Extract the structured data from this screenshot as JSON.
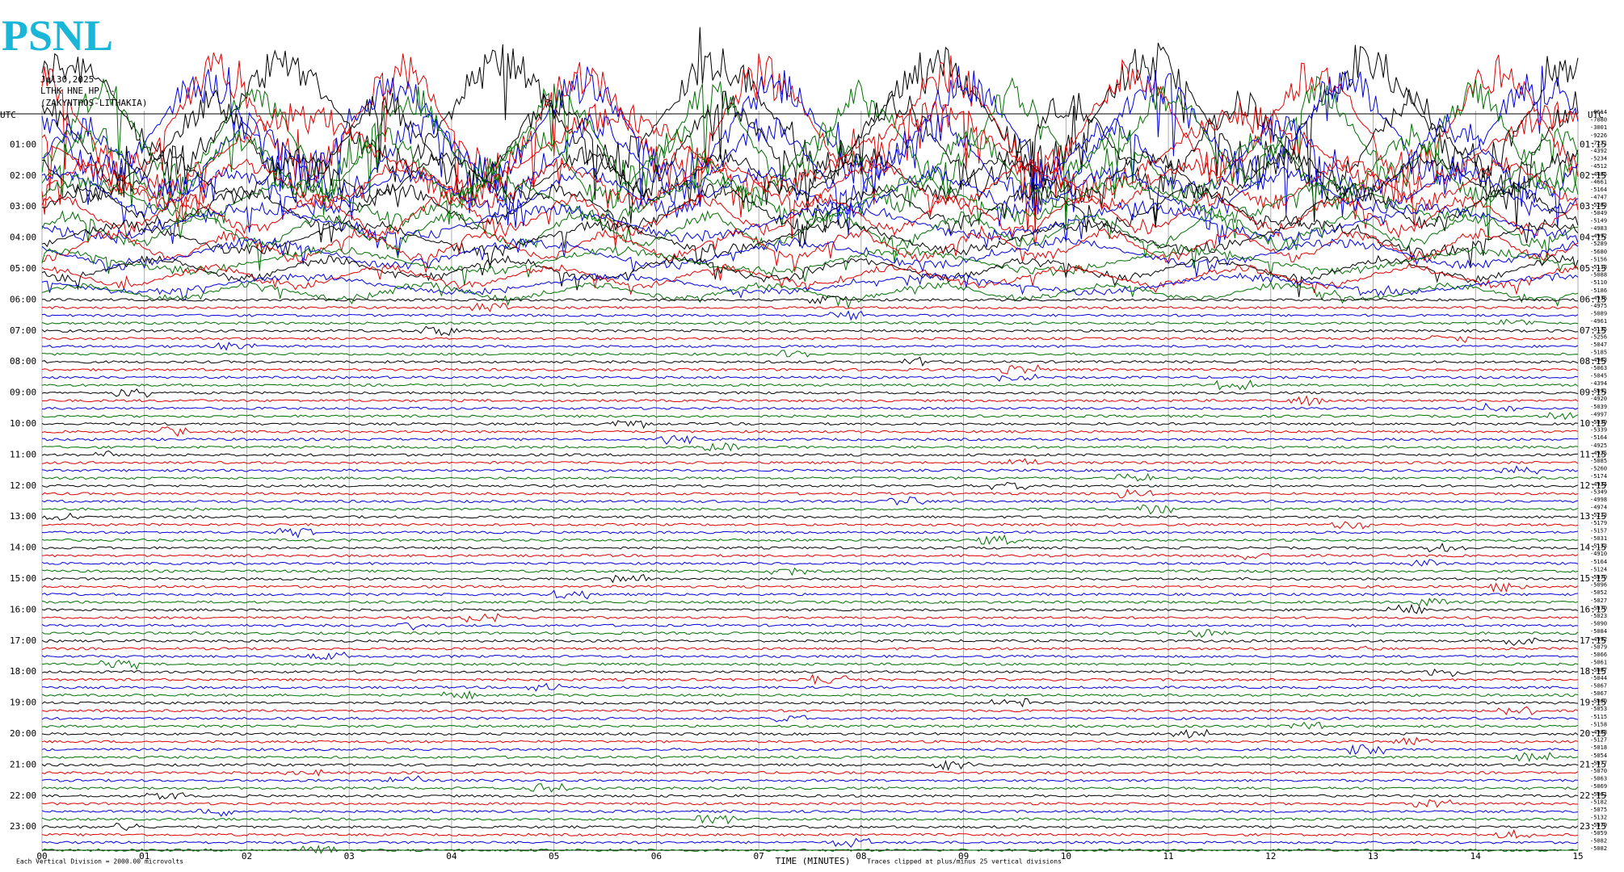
{
  "header": {
    "logo": "PSNL",
    "date": "Jul30,2025",
    "station": "LTHK HNE HP --",
    "location": "(ZAKYNTHOS-LITHAKIA)"
  },
  "left_axis": {
    "title": "UTC",
    "labels": [
      "01:00",
      "02:00",
      "03:00",
      "04:00",
      "05:00",
      "06:00",
      "07:00",
      "08:00",
      "09:00",
      "10:00",
      "11:00",
      "12:00",
      "13:00",
      "14:00",
      "15:00",
      "16:00",
      "17:00",
      "18:00",
      "19:00",
      "20:00",
      "21:00",
      "22:00",
      "23:00"
    ]
  },
  "right_axis": {
    "title": "UTC",
    "labels": [
      "01:15",
      "02:15",
      "03:15",
      "04:15",
      "05:15",
      "06:15",
      "07:15",
      "08:15",
      "09:15",
      "10:15",
      "11:15",
      "12:15",
      "13:15",
      "14:15",
      "15:15",
      "16:15",
      "17:15",
      "18:15",
      "19:15",
      "20:15",
      "21:15",
      "22:15",
      "23:15"
    ],
    "offsets": [
      "-8614",
      "-7080",
      "-3001",
      "-9226",
      "-7221",
      "-4392",
      "-5234",
      "-4512",
      "-4485",
      "-4661",
      "-5164",
      "-4747",
      "-5283",
      "-5049",
      "-5149",
      "-4983",
      "-4992",
      "-5289",
      "-5680",
      "-5156",
      "-5118",
      "-5088",
      "-5110",
      "-5186",
      "-4936",
      "-4975",
      "-5089",
      "-4961",
      "-5135",
      "-5256",
      "-5047",
      "-5185",
      "-4963",
      "-5063",
      "-5045",
      "-4394",
      "-5091",
      "-4920",
      "-5039",
      "-4997",
      "-5039",
      "-5339",
      "-5164",
      "-4925",
      "-4925",
      "-5085",
      "-5260",
      "-5174",
      "-4934",
      "-5349",
      "-4998",
      "-4974",
      "-5213",
      "-5179",
      "-5157",
      "-5031",
      "-5133",
      "-4910",
      "-5164",
      "-5124",
      "-5070",
      "-5096",
      "-5052",
      "-5027",
      "-5070",
      "-5023",
      "-5090",
      "-5084",
      "-4992",
      "-5079",
      "-5066",
      "-5061",
      "-5087",
      "-5044",
      "-5067",
      "-5067",
      "-5060",
      "-5053",
      "-5115",
      "-5158",
      "-4988",
      "-5127",
      "-5018",
      "-5054",
      "-5077",
      "-5070",
      "-5063",
      "-5069",
      "-5061",
      "-5182",
      "-5075",
      "-5132",
      "-5079",
      "-5059",
      "-5082",
      "-5082"
    ]
  },
  "x_axis": {
    "title": "TIME (MINUTES)",
    "labels": [
      "00",
      "01",
      "02",
      "03",
      "04",
      "05",
      "06",
      "07",
      "08",
      "09",
      "10",
      "11",
      "12",
      "13",
      "14",
      "15"
    ]
  },
  "footer": {
    "scale_note": "Each Vertical Division = 2000.00 microvolts",
    "clip_note": "Traces clipped at plus/minus 25 vertical divisions"
  }
}
